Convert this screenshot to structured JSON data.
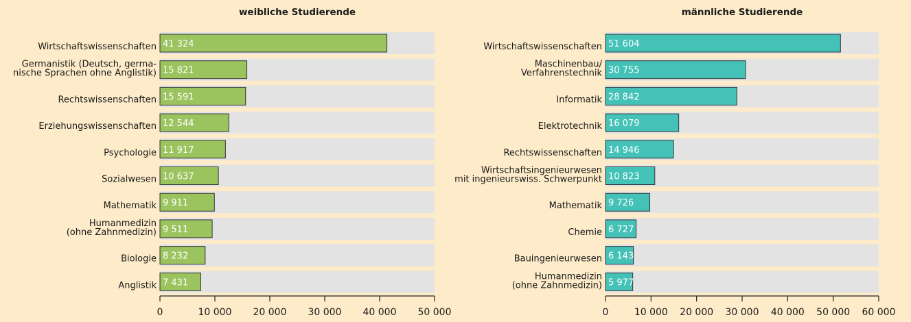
{
  "chart_data": [
    {
      "type": "bar",
      "orientation": "horizontal",
      "title": "weibliche Studierende",
      "color": "#9bc45f",
      "categories": [
        "Wirtschaftswissenschaften",
        "Germanistik (Deutsch, germa-\nnische Sprachen ohne Anglistik)",
        "Rechtswissenschaften",
        "Erziehungswissenschaften",
        "Psychologie",
        "Sozialwesen",
        "Mathematik",
        "Humanmedizin\n(ohne Zahnmedizin)",
        "Biologie",
        "Anglistik"
      ],
      "values": [
        41324,
        15821,
        15591,
        12544,
        11917,
        10637,
        9911,
        9511,
        8232,
        7431
      ],
      "value_labels": [
        "41 324",
        "15 821",
        "15 591",
        "12 544",
        "11 917",
        "10 637",
        "9 911",
        "9 511",
        "8 232",
        "7 431"
      ],
      "xlim": [
        0,
        50000
      ],
      "xticks": [
        0,
        {
          "value": 10000,
          "label": "10 000"
        },
        {
          "value": 20000,
          "label": "20 000"
        },
        {
          "value": 30000,
          "label": "30 000"
        },
        {
          "value": 40000,
          "label": "40 000"
        },
        {
          "value": 50000,
          "label": "50 000"
        }
      ]
    },
    {
      "type": "bar",
      "orientation": "horizontal",
      "title": "männliche Studierende",
      "color": "#45c2b8",
      "categories": [
        "Wirtschaftswissenschaften",
        "Maschinenbau/\nVerfahrenstechnik",
        "Informatik",
        "Elektrotechnik",
        "Rechtswissenschaften",
        "Wirtschaftsingenieurwesen\nmit ingenieurswiss. Schwerpunkt",
        "Mathematik",
        "Chemie",
        "Bauingenieurwesen",
        "Humanmedizin\n(ohne Zahnmedizin)"
      ],
      "values": [
        51604,
        30755,
        28842,
        16079,
        14946,
        10823,
        9726,
        6727,
        6143,
        5977
      ],
      "value_labels": [
        "51 604",
        "30 755",
        "28 842",
        "16 079",
        "14 946",
        "10 823",
        "9 726",
        "6 727",
        "6 143",
        "5 977"
      ],
      "xlim": [
        0,
        60000
      ],
      "xticks": [
        0,
        {
          "value": 10000,
          "label": "10 000"
        },
        {
          "value": 20000,
          "label": "20 000"
        },
        {
          "value": 30000,
          "label": "30 000"
        },
        {
          "value": 40000,
          "label": "40 000"
        },
        {
          "value": 50000,
          "label": "50 000"
        },
        {
          "value": 60000,
          "label": "60 000"
        }
      ]
    }
  ]
}
